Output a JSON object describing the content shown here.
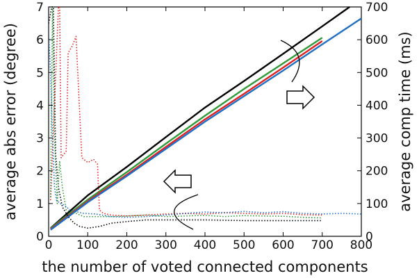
{
  "chart_data": {
    "type": "line",
    "title": "",
    "xlabel": "the number of voted connected components",
    "ylabel_left": "average abs error (degree)",
    "ylabel_right": "average comp time (ms)",
    "xlim": [
      0,
      800
    ],
    "ylim_left": [
      0,
      7
    ],
    "ylim_right": [
      0,
      700
    ],
    "x_ticks": [
      "0",
      "100",
      "200",
      "300",
      "400",
      "500",
      "600",
      "700",
      "800"
    ],
    "y_left_ticks": [
      "0",
      "1",
      "2",
      "3",
      "4",
      "5",
      "6",
      "7"
    ],
    "y_right_ticks": [
      "0",
      "100",
      "200",
      "300",
      "400",
      "500",
      "600",
      "700"
    ],
    "grid": false,
    "legend": "none",
    "annotations": [
      {
        "shape": "arrow",
        "direction": "right",
        "meaning": "series plotted against right axis"
      },
      {
        "shape": "arrow",
        "direction": "left",
        "meaning": "series plotted against left axis"
      }
    ],
    "series": [
      {
        "axis": "right",
        "style": "solid",
        "color": "#000000",
        "x": [
          5,
          100,
          200,
          300,
          400,
          500,
          600,
          700,
          770
        ],
        "y": [
          25,
          125,
          212,
          303,
          393,
          474,
          557,
          641,
          700
        ]
      },
      {
        "axis": "right",
        "style": "solid",
        "color": "#2e9a3a",
        "x": [
          5,
          100,
          200,
          300,
          400,
          500,
          600,
          700
        ],
        "y": [
          25,
          112,
          196,
          283,
          368,
          450,
          528,
          606
        ]
      },
      {
        "axis": "right",
        "style": "solid",
        "color": "#e02020",
        "x": [
          5,
          100,
          200,
          300,
          400,
          500,
          600,
          700
        ],
        "y": [
          22,
          107,
          188,
          273,
          357,
          435,
          515,
          596
        ]
      },
      {
        "axis": "right",
        "style": "solid",
        "color": "#1f6fc4",
        "x": [
          5,
          100,
          200,
          300,
          400,
          500,
          600,
          700,
          800
        ],
        "y": [
          20,
          104,
          184,
          267,
          350,
          428,
          506,
          586,
          665
        ]
      },
      {
        "axis": "left",
        "style": "dotted",
        "color": "#000000",
        "x": [
          0,
          8,
          12,
          18,
          25,
          35,
          50,
          65,
          80,
          100,
          130,
          160,
          200,
          250,
          300,
          400,
          500,
          600,
          700
        ],
        "y": [
          6.5,
          7.0,
          7.0,
          2.5,
          1.5,
          0.9,
          0.6,
          0.4,
          0.3,
          0.25,
          0.3,
          0.4,
          0.45,
          0.5,
          0.5,
          0.5,
          0.48,
          0.48,
          0.48
        ]
      },
      {
        "axis": "left",
        "style": "dotted",
        "color": "#e02020",
        "x": [
          5,
          25,
          28,
          32,
          45,
          50,
          60,
          70,
          85,
          100,
          115,
          125,
          130,
          140,
          160,
          200,
          250,
          300,
          350,
          400,
          450,
          500,
          550,
          600,
          650,
          700
        ],
        "y": [
          1.1,
          7.0,
          7.0,
          2.4,
          2.6,
          5.6,
          5.8,
          6.1,
          2.4,
          2.25,
          2.35,
          2.2,
          0.8,
          0.7,
          0.65,
          0.62,
          0.65,
          0.68,
          0.7,
          0.68,
          0.72,
          0.7,
          0.68,
          0.7,
          0.66,
          0.65
        ]
      },
      {
        "axis": "left",
        "style": "dotted",
        "color": "#2e9a3a",
        "x": [
          5,
          10,
          15,
          22,
          28,
          35,
          45,
          55,
          70,
          90,
          120,
          160,
          200,
          250,
          300,
          350,
          400,
          450,
          500,
          550,
          600,
          650,
          700
        ],
        "y": [
          1.2,
          7.0,
          3.0,
          1.0,
          2.3,
          1.5,
          0.8,
          0.75,
          0.7,
          0.6,
          0.6,
          0.6,
          0.62,
          0.65,
          0.6,
          0.62,
          0.64,
          0.6,
          0.63,
          0.62,
          0.61,
          0.58,
          0.56
        ]
      },
      {
        "axis": "left",
        "style": "dotted",
        "color": "#1f6fc4",
        "x": [
          0,
          5,
          10,
          15,
          20,
          30,
          40,
          55,
          70,
          90,
          120,
          160,
          200,
          250,
          300,
          350,
          400,
          450,
          500,
          550,
          600,
          650,
          700,
          750,
          800
        ],
        "y": [
          6.2,
          5.0,
          3.0,
          1.5,
          1.1,
          1.0,
          0.95,
          0.8,
          0.75,
          0.7,
          0.68,
          0.6,
          0.58,
          0.6,
          0.65,
          0.7,
          0.74,
          0.72,
          0.76,
          0.72,
          0.75,
          0.7,
          0.68,
          0.7,
          0.68
        ]
      }
    ]
  }
}
